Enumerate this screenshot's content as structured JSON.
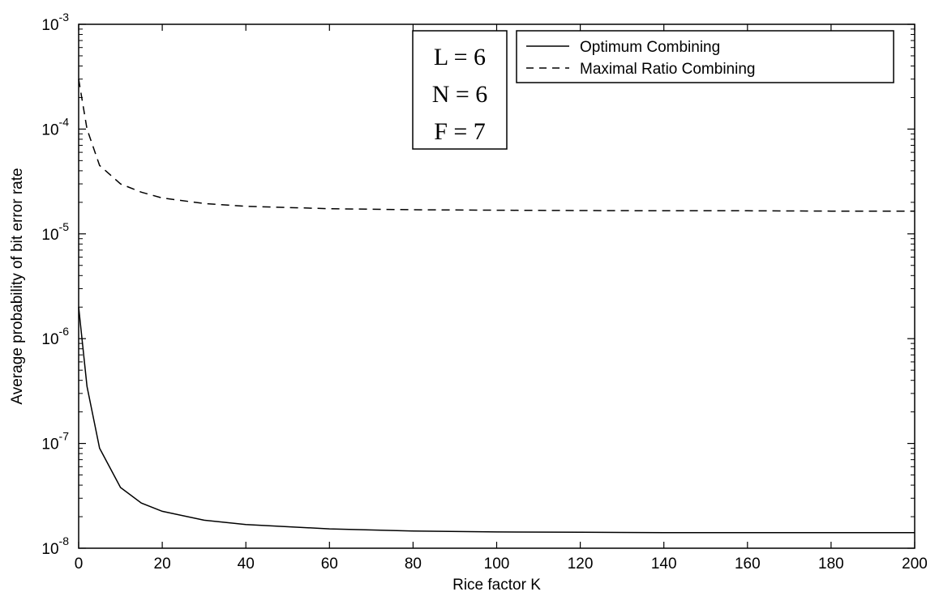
{
  "chart_data": {
    "type": "line",
    "xlabel": "Rice factor K",
    "ylabel": "Average probability of bit error rate",
    "xlim": [
      0,
      200
    ],
    "ylim": [
      1e-08,
      0.001
    ],
    "yscale": "log",
    "grid": false,
    "legend_position": "top-right",
    "x_ticks": [
      0,
      20,
      40,
      60,
      80,
      100,
      120,
      140,
      160,
      180,
      200
    ],
    "x_tick_labels": [
      "0",
      "20",
      "40",
      "60",
      "80",
      "100",
      "120",
      "140",
      "160",
      "180",
      "200"
    ],
    "y_ticks": [
      {
        "value": 1e-08,
        "base": "10",
        "exp": "-8"
      },
      {
        "value": 1e-07,
        "base": "10",
        "exp": "-7"
      },
      {
        "value": 1e-06,
        "base": "10",
        "exp": "-6"
      },
      {
        "value": 1e-05,
        "base": "10",
        "exp": "-5"
      },
      {
        "value": 0.0001,
        "base": "10",
        "exp": "-4"
      },
      {
        "value": 0.001,
        "base": "10",
        "exp": "-3"
      }
    ],
    "annotation_lines": [
      "L = 6",
      "N = 6",
      "F = 7"
    ],
    "series": [
      {
        "name": "Optimum Combining",
        "style": "solid",
        "color": "#000000",
        "x": [
          0,
          2,
          5,
          10,
          15,
          20,
          30,
          40,
          60,
          80,
          100,
          120,
          140,
          160,
          180,
          200
        ],
        "y": [
          2e-06,
          3.5e-07,
          9e-08,
          3.8e-08,
          2.7e-08,
          2.25e-08,
          1.85e-08,
          1.68e-08,
          1.53e-08,
          1.46e-08,
          1.43e-08,
          1.42e-08,
          1.41e-08,
          1.41e-08,
          1.41e-08,
          1.41e-08
        ]
      },
      {
        "name": "Maximal Ratio Combining",
        "style": "dashed",
        "color": "#000000",
        "x": [
          0,
          2,
          5,
          10,
          15,
          20,
          30,
          40,
          60,
          80,
          100,
          120,
          140,
          160,
          180,
          200
        ],
        "y": [
          0.0003,
          0.0001,
          4.5e-05,
          3e-05,
          2.5e-05,
          2.2e-05,
          1.95e-05,
          1.83e-05,
          1.74e-05,
          1.7e-05,
          1.68e-05,
          1.67e-05,
          1.66e-05,
          1.66e-05,
          1.65e-05,
          1.65e-05
        ]
      }
    ]
  }
}
